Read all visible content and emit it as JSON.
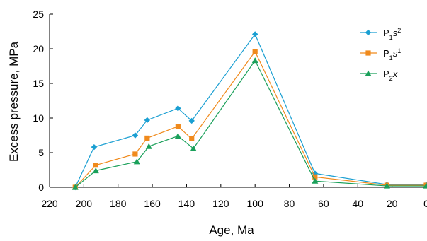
{
  "chart_data": {
    "type": "line",
    "title": "",
    "xlabel": "Age, Ma",
    "ylabel": "Excess pressure, MPa",
    "x_reversed": true,
    "xlim": [
      220,
      0
    ],
    "ylim": [
      0,
      25
    ],
    "x_ticks": [
      220,
      200,
      180,
      160,
      140,
      120,
      100,
      80,
      60,
      40,
      20,
      0
    ],
    "y_ticks": [
      0,
      5,
      10,
      15,
      20,
      25
    ],
    "x_tick_labels": [
      "220",
      "200",
      "180",
      "160",
      "140",
      "120",
      "100",
      "80",
      "60",
      "40",
      "20",
      "0"
    ],
    "y_tick_labels": [
      "0",
      "5",
      "10",
      "15",
      "20",
      "25"
    ],
    "grid": false,
    "legend_position": "top-right",
    "series": [
      {
        "name": "P1s2",
        "label_base": "P",
        "label_sub": "1",
        "label_main": "s",
        "label_sup": "2",
        "color": "#1a9fd2",
        "marker": "diamond",
        "points": [
          {
            "x": 205,
            "y": 0
          },
          {
            "x": 194,
            "y": 5.8
          },
          {
            "x": 170,
            "y": 7.5
          },
          {
            "x": 163,
            "y": 9.7
          },
          {
            "x": 145,
            "y": 11.4
          },
          {
            "x": 137,
            "y": 9.6
          },
          {
            "x": 100,
            "y": 22.1
          },
          {
            "x": 65,
            "y": 2
          },
          {
            "x": 23,
            "y": 0.4
          },
          {
            "x": 0,
            "y": 0.4
          }
        ]
      },
      {
        "name": "P1s1",
        "label_base": "P",
        "label_sub": "1",
        "label_main": "s",
        "label_sup": "1",
        "color": "#f08a1c",
        "marker": "square",
        "points": [
          {
            "x": 205,
            "y": 0
          },
          {
            "x": 193,
            "y": 3.2
          },
          {
            "x": 170,
            "y": 4.8
          },
          {
            "x": 163,
            "y": 7.1
          },
          {
            "x": 145,
            "y": 8.8
          },
          {
            "x": 137,
            "y": 7
          },
          {
            "x": 100,
            "y": 19.6
          },
          {
            "x": 65,
            "y": 1.5
          },
          {
            "x": 23,
            "y": 0.3
          },
          {
            "x": 0,
            "y": 0.3
          }
        ]
      },
      {
        "name": "P2x",
        "label_base": "P",
        "label_sub": "2",
        "label_main": "x",
        "label_sup": "",
        "color": "#1aa05a",
        "marker": "triangle",
        "points": [
          {
            "x": 205,
            "y": 0
          },
          {
            "x": 193,
            "y": 2.4
          },
          {
            "x": 169,
            "y": 3.7
          },
          {
            "x": 162,
            "y": 5.9
          },
          {
            "x": 145,
            "y": 7.4
          },
          {
            "x": 136,
            "y": 5.6
          },
          {
            "x": 100,
            "y": 18.3
          },
          {
            "x": 65,
            "y": 0.9
          },
          {
            "x": 23,
            "y": 0.2
          },
          {
            "x": 0,
            "y": 0.2
          }
        ]
      }
    ]
  }
}
